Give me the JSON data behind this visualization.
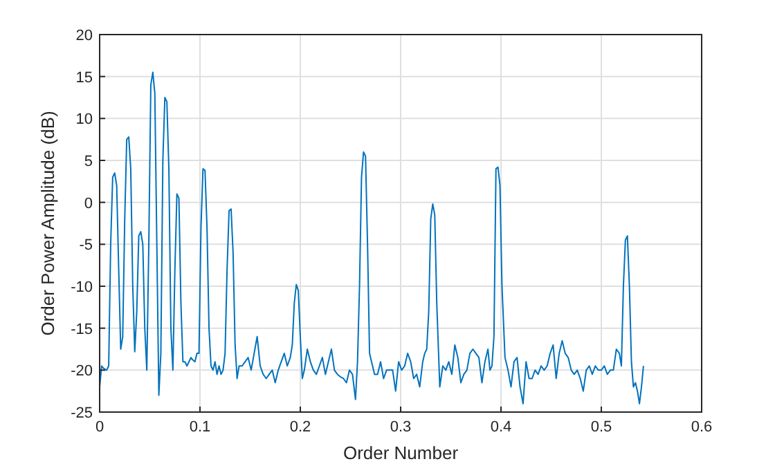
{
  "chart_data": {
    "type": "line",
    "xlabel": "Order Number",
    "ylabel": "Order Power Amplitude (dB)",
    "xlim": [
      0,
      0.6
    ],
    "ylim": [
      -25,
      20
    ],
    "xticks": [
      0,
      0.1,
      0.2,
      0.3,
      0.4,
      0.5,
      0.6
    ],
    "yticks": [
      -25,
      -20,
      -15,
      -10,
      -5,
      0,
      5,
      10,
      15,
      20
    ],
    "grid": true,
    "series": [
      {
        "color": "#0072bd",
        "x": [
          0,
          0.002,
          0.004,
          0.007,
          0.009,
          0.011,
          0.013,
          0.015,
          0.017,
          0.019,
          0.021,
          0.023,
          0.025,
          0.027,
          0.029,
          0.031,
          0.033,
          0.035,
          0.037,
          0.039,
          0.041,
          0.043,
          0.045,
          0.047,
          0.049,
          0.051,
          0.053,
          0.055,
          0.057,
          0.059,
          0.061,
          0.063,
          0.065,
          0.067,
          0.069,
          0.071,
          0.073,
          0.075,
          0.077,
          0.079,
          0.081,
          0.083,
          0.085,
          0.087,
          0.089,
          0.091,
          0.093,
          0.095,
          0.097,
          0.099,
          0.101,
          0.103,
          0.105,
          0.107,
          0.109,
          0.111,
          0.113,
          0.115,
          0.117,
          0.119,
          0.121,
          0.123,
          0.125,
          0.127,
          0.129,
          0.131,
          0.133,
          0.135,
          0.137,
          0.139,
          0.142,
          0.145,
          0.148,
          0.151,
          0.154,
          0.157,
          0.16,
          0.163,
          0.166,
          0.169,
          0.172,
          0.175,
          0.178,
          0.181,
          0.184,
          0.187,
          0.19,
          0.192,
          0.194,
          0.196,
          0.198,
          0.2,
          0.202,
          0.204,
          0.207,
          0.21,
          0.213,
          0.216,
          0.219,
          0.222,
          0.225,
          0.228,
          0.231,
          0.234,
          0.237,
          0.24,
          0.243,
          0.246,
          0.249,
          0.252,
          0.255,
          0.257,
          0.259,
          0.261,
          0.263,
          0.265,
          0.267,
          0.269,
          0.271,
          0.274,
          0.277,
          0.28,
          0.283,
          0.286,
          0.289,
          0.292,
          0.295,
          0.298,
          0.301,
          0.304,
          0.307,
          0.31,
          0.313,
          0.316,
          0.319,
          0.322,
          0.324,
          0.326,
          0.328,
          0.33,
          0.332,
          0.334,
          0.336,
          0.339,
          0.342,
          0.345,
          0.348,
          0.351,
          0.354,
          0.357,
          0.36,
          0.363,
          0.366,
          0.369,
          0.372,
          0.375,
          0.378,
          0.381,
          0.384,
          0.387,
          0.389,
          0.391,
          0.393,
          0.395,
          0.397,
          0.399,
          0.401,
          0.404,
          0.407,
          0.41,
          0.413,
          0.416,
          0.419,
          0.422,
          0.425,
          0.428,
          0.431,
          0.434,
          0.437,
          0.44,
          0.443,
          0.446,
          0.449,
          0.452,
          0.455,
          0.458,
          0.461,
          0.464,
          0.467,
          0.47,
          0.473,
          0.476,
          0.479,
          0.482,
          0.485,
          0.488,
          0.491,
          0.494,
          0.497,
          0.5,
          0.503,
          0.506,
          0.509,
          0.512,
          0.515,
          0.518,
          0.52,
          0.522,
          0.524,
          0.526,
          0.528,
          0.53,
          0.532,
          0.534,
          0.536,
          0.538,
          0.54,
          0.542
        ],
        "values": [
          -22,
          -19.5,
          -19.8,
          -20,
          -19.5,
          -5,
          3,
          3.5,
          2,
          -8,
          -17.5,
          -16,
          -2,
          7.5,
          7.8,
          4,
          -10,
          -17.8,
          -13,
          -4,
          -3.5,
          -5,
          -15,
          -20,
          -5,
          14,
          15.5,
          13,
          -5,
          -23,
          -18,
          5,
          12.5,
          12,
          4,
          -15,
          -20,
          -8,
          1,
          0.5,
          -12,
          -19,
          -19,
          -19.5,
          -19,
          -18.5,
          -18.8,
          -19,
          -18,
          -18,
          -3,
          4,
          3.8,
          -3,
          -15,
          -19.5,
          -20,
          -19,
          -20.5,
          -19.5,
          -20.5,
          -20,
          -18,
          -8,
          -1,
          -0.8,
          -6,
          -17,
          -21,
          -19.5,
          -19.5,
          -19,
          -18.5,
          -20,
          -18,
          -16,
          -19.5,
          -20.5,
          -21,
          -20.5,
          -20,
          -21.5,
          -20,
          -19,
          -18,
          -19.5,
          -18.5,
          -17,
          -12,
          -9.8,
          -10.5,
          -16,
          -21,
          -20,
          -17.5,
          -19,
          -20,
          -20.5,
          -19.5,
          -18.5,
          -20.5,
          -19,
          -17.5,
          -20,
          -20.5,
          -20.8,
          -21,
          -21.5,
          -20,
          -20.5,
          -23.5,
          -19,
          -10,
          3,
          6,
          5.5,
          -5,
          -18,
          -19,
          -20.5,
          -20.5,
          -19,
          -21,
          -20,
          -20,
          -20,
          -22.5,
          -19,
          -20,
          -19.5,
          -18,
          -19,
          -21,
          -20.5,
          -22,
          -19,
          -18,
          -17.5,
          -13,
          -2,
          -0.2,
          -1.5,
          -12,
          -22,
          -19.5,
          -20,
          -19,
          -20.5,
          -17,
          -18.5,
          -21.5,
          -20.5,
          -20,
          -18,
          -17.5,
          -18,
          -18.5,
          -21.5,
          -19,
          -17.5,
          -20,
          -19.5,
          -16,
          4,
          4.2,
          2,
          -10,
          -18.5,
          -20,
          -22,
          -19,
          -18.5,
          -22,
          -24,
          -19,
          -21,
          -21,
          -20,
          -20.5,
          -19.5,
          -20,
          -19.5,
          -18,
          -17,
          -21,
          -18,
          -16.5,
          -18,
          -18.5,
          -20,
          -20.5,
          -20,
          -21,
          -22.5,
          -20,
          -19.5,
          -20.5,
          -19.5,
          -20,
          -20,
          -19.5,
          -20.5,
          -20,
          -20,
          -17.5,
          -18,
          -19.5,
          -10,
          -4.5,
          -4,
          -10,
          -19,
          -22,
          -21.5,
          -22.5,
          -24,
          -22,
          -19.5
        ]
      }
    ]
  }
}
